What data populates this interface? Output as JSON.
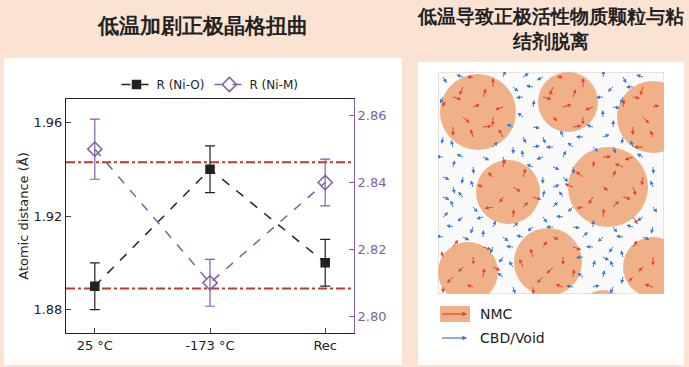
{
  "chart_data": {
    "type": "line",
    "title": "低温加剧正极晶格扭曲",
    "categories": [
      "25 °C",
      "-173 °C",
      "Rec"
    ],
    "y_label": "Atomic distance (Å)",
    "ylim": [
      1.87,
      1.97
    ],
    "yticks": [
      1.88,
      1.92,
      1.96
    ],
    "y2lim": [
      2.795,
      2.865
    ],
    "y2ticks": [
      {
        "value": 2.8,
        "label": "2.80"
      },
      {
        "value": 2.82,
        "label": "2.82"
      },
      {
        "value": 2.84,
        "label": "2.84"
      },
      {
        "value": 2.86,
        "label": "2.86"
      }
    ],
    "series": [
      {
        "name": "R (Ni-O)",
        "color": "#222222",
        "marker": "square",
        "line_style": "dash",
        "values": [
          1.89,
          1.94,
          1.9
        ],
        "errors": [
          0.01,
          0.01,
          0.01
        ]
      },
      {
        "name": "R (Ni-M)",
        "color": "#7e5fa8",
        "marker": "diamond-open",
        "line_style": "dash",
        "axis": "y2",
        "values": [
          2.85,
          2.81,
          2.84
        ],
        "errors": [
          0.009,
          0.007,
          0.007
        ]
      }
    ],
    "reference_lines": {
      "values": [
        1.943,
        1.889
      ],
      "color": "#c0392b",
      "line_style": "dashdot"
    },
    "legend": "top",
    "grid": false
  },
  "image_panel": {
    "title": "低温导致正极活性物质颗粒与粘结剂脱离",
    "legend": [
      {
        "label": "NMC",
        "color": "#f0b088",
        "arrow_color": "#e8452a"
      },
      {
        "label": "CBD/Void",
        "color": "#ffffff",
        "arrow_color": "#3a7ad6"
      }
    ]
  }
}
